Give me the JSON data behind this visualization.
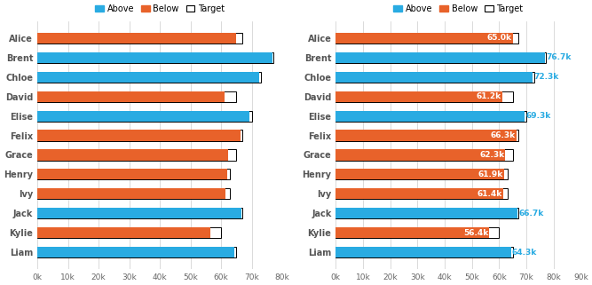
{
  "names": [
    "Alice",
    "Brent",
    "Chloe",
    "David",
    "Elise",
    "Felix",
    "Grace",
    "Henry",
    "Ivy",
    "Jack",
    "Kylie",
    "Liam"
  ],
  "above": [
    0,
    76700,
    72300,
    0,
    69300,
    0,
    0,
    0,
    0,
    66700,
    0,
    64300
  ],
  "below": [
    65000,
    0,
    0,
    61200,
    0,
    66300,
    62300,
    61900,
    61400,
    0,
    56400,
    0
  ],
  "target": [
    67000,
    77000,
    73000,
    65000,
    70000,
    67000,
    65000,
    63000,
    63000,
    67000,
    60000,
    65000
  ],
  "labels": [
    "65.0k",
    "76.7k",
    "72.3k",
    "61.2k",
    "69.3k",
    "66.3k",
    "62.3k",
    "61.9k",
    "61.4k",
    "66.7k",
    "56.4k",
    "64.3k"
  ],
  "color_above": "#29ABE2",
  "color_below": "#E8622A",
  "color_target_edge": "#000000",
  "color_target_fill": "#FFFFFF",
  "color_label_inside": "#FFFFFF",
  "color_label_outside": "#29ABE2",
  "xlim_left": [
    0,
    80000
  ],
  "xlim_right": [
    0,
    90000
  ],
  "xticks_left": [
    0,
    10000,
    20000,
    30000,
    40000,
    50000,
    60000,
    70000,
    80000
  ],
  "xtick_labels_left": [
    "0k",
    "10k",
    "20k",
    "30k",
    "40k",
    "50k",
    "60k",
    "70k",
    "80k"
  ],
  "xticks_right": [
    0,
    10000,
    20000,
    30000,
    40000,
    50000,
    60000,
    70000,
    80000,
    90000
  ],
  "xtick_labels_right": [
    "0k",
    "10k",
    "20k",
    "30k",
    "40k",
    "50k",
    "60k",
    "70k",
    "80k",
    "90k"
  ],
  "bg_color": "#FFFFFF",
  "bar_height": 0.55
}
